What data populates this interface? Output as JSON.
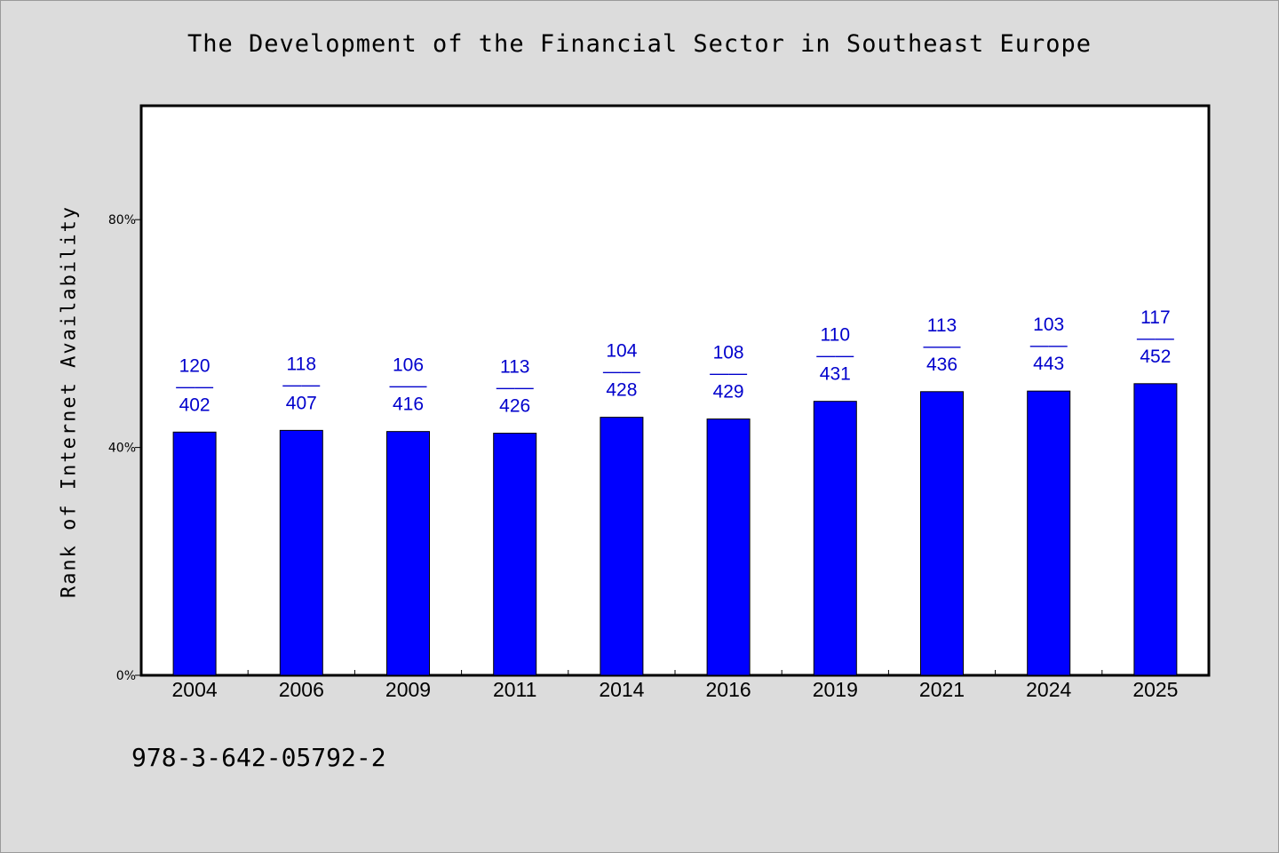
{
  "header": {
    "title": "The Development of the Financial Sector in Southeast Europe"
  },
  "footer": {
    "code": "978-3-642-05792-2"
  },
  "chart_data": {
    "type": "bar",
    "title": "The Development of the Financial Sector in Southeast Europe",
    "xlabel": "",
    "ylabel": "Rank of Internet Availability",
    "ylim": [
      0,
      100
    ],
    "yticks": [
      0,
      40,
      80
    ],
    "ytick_labels": [
      "0%",
      "40%",
      "80%"
    ],
    "grid": false,
    "legend": "none",
    "bar_color": "#0000ff",
    "label_color": "#0000cc",
    "label_separator": "——",
    "categories": [
      "2004",
      "2006",
      "2009",
      "2011",
      "2014",
      "2016",
      "2019",
      "2021",
      "2024",
      "2025"
    ],
    "values": [
      42.7,
      43.0,
      42.8,
      42.5,
      45.3,
      45.0,
      48.1,
      49.8,
      49.9,
      51.2
    ],
    "labels_top": [
      "120",
      "118",
      "106",
      "113",
      "104",
      "108",
      "110",
      "113",
      "103",
      "117"
    ],
    "labels_bottom": [
      "402",
      "407",
      "416",
      "426",
      "428",
      "429",
      "431",
      "436",
      "443",
      "452"
    ]
  }
}
